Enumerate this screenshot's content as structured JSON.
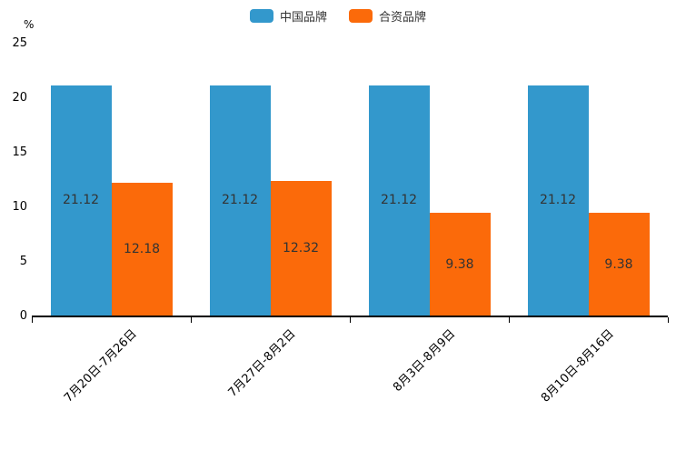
{
  "chart_data": {
    "type": "bar",
    "title": "",
    "unit_label": "%",
    "categories": [
      "7月20日-7月26日",
      "7月27日-8月2日",
      "8月3日-8月9日",
      "8月10日-8月16日"
    ],
    "series": [
      {
        "name": "中国品牌",
        "color": "#3398CC",
        "values": [
          21.12,
          21.12,
          21.12,
          21.12
        ]
      },
      {
        "name": "合资品牌",
        "color": "#FB6A0A",
        "values": [
          12.18,
          12.32,
          9.38,
          9.38
        ]
      }
    ],
    "value_label_color": "#333333",
    "axis_color": "#000000",
    "ylim": [
      0,
      25
    ],
    "yticks": [
      0,
      5,
      10,
      15,
      20,
      25
    ],
    "grid": false,
    "legend_position": "top",
    "value_labels_visible": true
  }
}
